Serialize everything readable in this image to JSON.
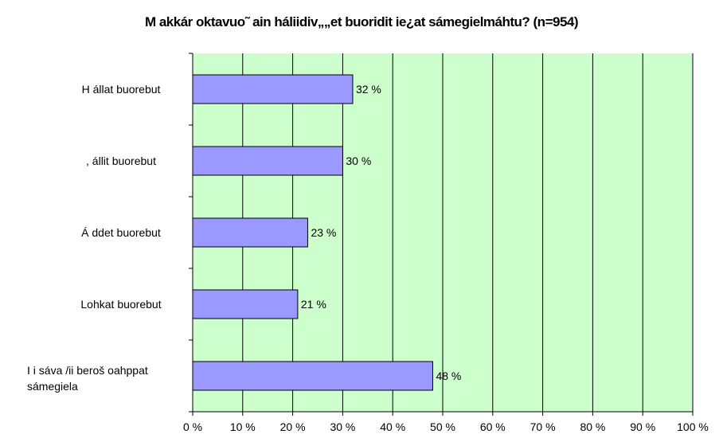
{
  "chart_data": {
    "type": "bar",
    "orientation": "horizontal",
    "title": "M akkár oktavuo˜ ain háliidiv„„et buoridit ie¿at sámegielmáhtu? (n=954)",
    "categories": [
      "H állat buorebut",
      ",  állit buorebut",
      "Á ddet buorebut",
      "Lohkat buorebut",
      "I i sáva /ii beroš oahppat sámegiela"
    ],
    "category_lines": [
      [
        "H állat buorebut"
      ],
      [
        ",  állit buorebut"
      ],
      [
        "Á ddet buorebut"
      ],
      [
        "Lohkat buorebut"
      ],
      [
        "I i sáva /ii beroš oahppat",
        "sámegiela"
      ]
    ],
    "values": [
      32,
      30,
      23,
      21,
      48
    ],
    "value_labels": [
      "32 %",
      "30 %",
      "23 %",
      "21 %",
      "48 %"
    ],
    "xlim": [
      0,
      100
    ],
    "x_ticks": [
      0,
      10,
      20,
      30,
      40,
      50,
      60,
      70,
      80,
      90,
      100
    ],
    "x_tick_labels": [
      "0 %",
      "10 %",
      "20 %",
      "30 %",
      "40 %",
      "50 %",
      "60 %",
      "70 %",
      "80 %",
      "90 %",
      "100 %"
    ],
    "grid": true,
    "colors": {
      "plot_background": "#ccffcc",
      "bar_fill": "#9999ff",
      "bar_stroke": "#000000",
      "grid": "#000000"
    }
  }
}
